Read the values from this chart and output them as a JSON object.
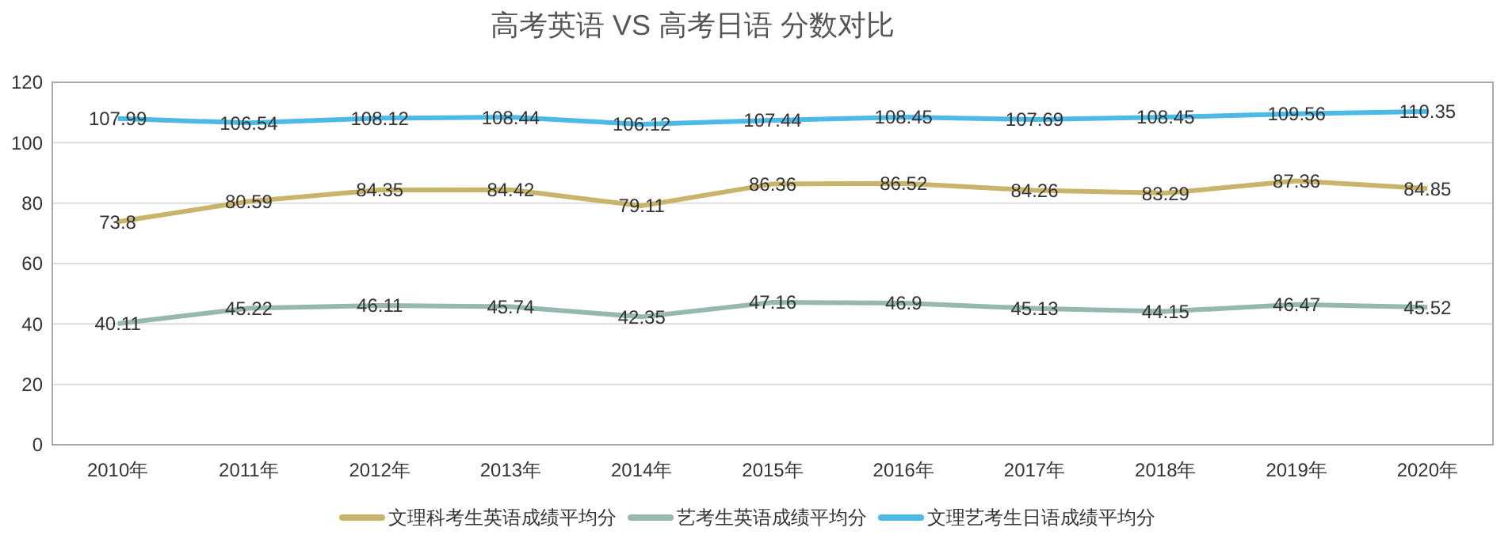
{
  "chart_data": {
    "type": "line",
    "title": "高考英语  VS  高考日语 分数对比",
    "categories": [
      "2010年",
      "2011年",
      "2012年",
      "2013年",
      "2014年",
      "2015年",
      "2016年",
      "2017年",
      "2018年",
      "2019年",
      "2020年"
    ],
    "series": [
      {
        "name": "文理科考生英语成绩平均分",
        "color": "#c8b46a",
        "values": [
          73.8,
          80.59,
          84.35,
          84.42,
          79.11,
          86.36,
          86.52,
          84.26,
          83.29,
          87.36,
          84.85
        ]
      },
      {
        "name": "艺考生英语成绩平均分",
        "color": "#97b8b0",
        "values": [
          40.11,
          45.22,
          46.11,
          45.74,
          42.35,
          47.16,
          46.9,
          45.13,
          44.15,
          46.47,
          45.52
        ]
      },
      {
        "name": "文理艺考生日语成绩平均分",
        "color": "#4cb9e6",
        "values": [
          107.99,
          106.54,
          108.12,
          108.44,
          106.12,
          107.44,
          108.45,
          107.69,
          108.45,
          109.56,
          110.35
        ]
      }
    ],
    "ylim": [
      0,
      120
    ],
    "yticks": [
      0,
      20,
      40,
      60,
      80,
      100,
      120
    ],
    "grid": "y",
    "legend": "bottom",
    "data_labels": true,
    "marker": "none",
    "line_style": "solid"
  }
}
